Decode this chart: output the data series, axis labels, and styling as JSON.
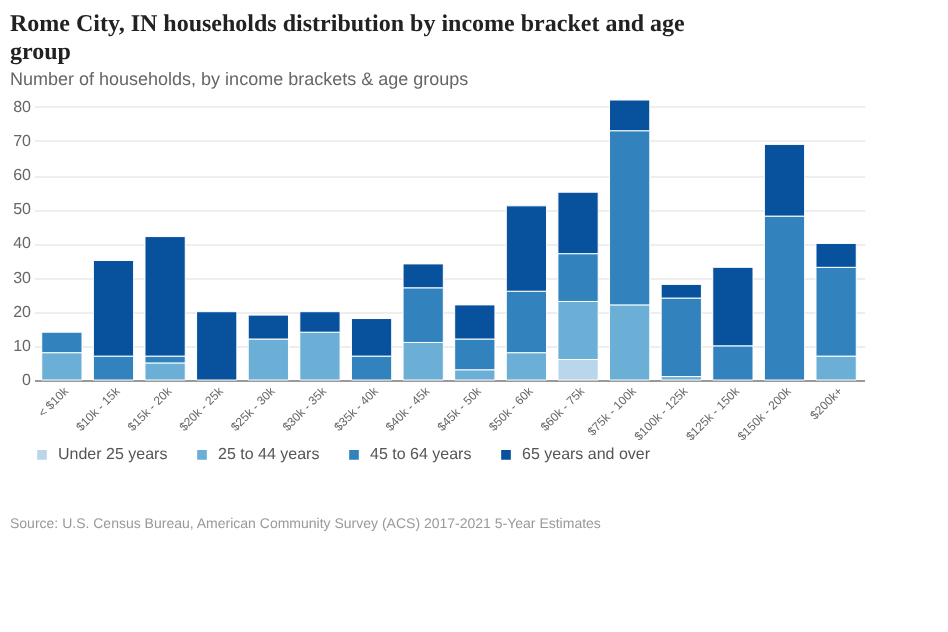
{
  "chart_data": {
    "type": "bar",
    "stacked": true,
    "title": "Rome City, IN households distribution by income bracket and age group",
    "subtitle": "Number of households, by income brackets & age groups",
    "categories": [
      "< $10k",
      "$10k - 15k",
      "$15k - 20k",
      "$20k - 25k",
      "$25k - 30k",
      "$30k - 35k",
      "$35k - 40k",
      "$40k - 45k",
      "$45k - 50k",
      "$50k - 60k",
      "$60k - 75k",
      "$75k - 100k",
      "$100k - 125k",
      "$125k - 150k",
      "$150k - 200k",
      "$200k+"
    ],
    "series": [
      {
        "name": "Under 25 years",
        "color": "#b9d6ea",
        "values": [
          0,
          0,
          0,
          0,
          0,
          0,
          0,
          0,
          0,
          0,
          6,
          0,
          0,
          0,
          0,
          0
        ]
      },
      {
        "name": "25 to 44 years",
        "color": "#6baed6",
        "values": [
          8,
          0,
          5,
          0,
          12,
          14,
          0,
          11,
          3,
          8,
          17,
          22,
          1,
          0,
          0,
          7
        ]
      },
      {
        "name": "45 to 64 years",
        "color": "#3182bd",
        "values": [
          6,
          7,
          2,
          0,
          0,
          0,
          7,
          16,
          9,
          18,
          14,
          51,
          23,
          10,
          48,
          26
        ]
      },
      {
        "name": "65 years and over",
        "color": "#08519c",
        "values": [
          0,
          28,
          35,
          20,
          7,
          6,
          11,
          7,
          10,
          25,
          18,
          9,
          4,
          23,
          21,
          7
        ]
      }
    ],
    "ylim": [
      0,
      82
    ],
    "yticks": [
      0,
      10,
      20,
      30,
      40,
      50,
      60,
      70,
      80
    ],
    "grid": "y",
    "legend": "bottom",
    "annotations": [
      "Source: U.S. Census Bureau, American Community Survey (ACS) 2017-2021 5-Year Estimates"
    ]
  }
}
